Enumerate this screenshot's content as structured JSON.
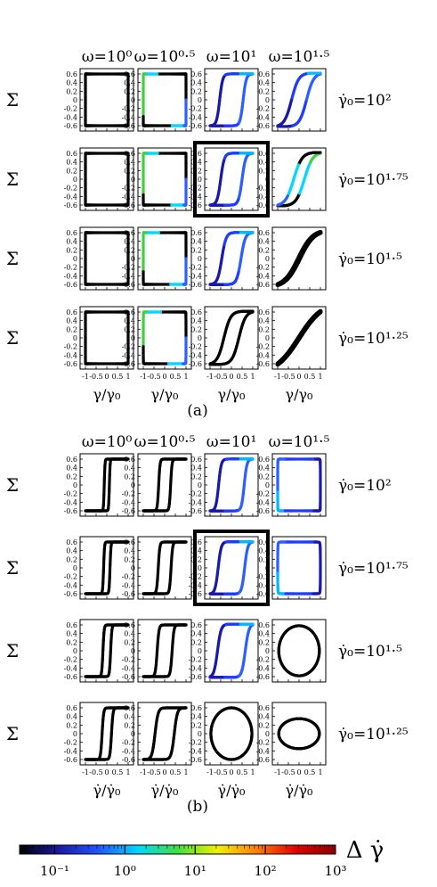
{
  "figure": {
    "colorbar_label": "Δ γ̇",
    "colorbar_ticks": [
      "10⁻¹",
      "10⁰",
      "10¹",
      "10²",
      "10³"
    ],
    "colorbar_log_range": [
      -1.5,
      3
    ],
    "colorbar_colors": [
      "#000000",
      "#1a1aa8",
      "#2255ff",
      "#00d8ff",
      "#40e040",
      "#f0f000",
      "#ff8000",
      "#e00000",
      "#900000"
    ],
    "ylabel": "Σ",
    "y_ticks": [
      "0.6",
      "0.4",
      "0.2",
      "0",
      "-0.2",
      "-0.4",
      "-0.6"
    ],
    "x_ticks": [
      "-1",
      "-0.5",
      "0",
      "0.5",
      "1"
    ]
  },
  "panels": [
    {
      "id": "a",
      "label": "(a)",
      "columns": [
        "ω=10⁰",
        "ω=10⁰·⁵",
        "ω=10¹",
        "ω=10¹·⁵"
      ],
      "rows": [
        "γ̇₀=10²",
        "γ̇₀=10¹·⁷⁵",
        "γ̇₀=10¹·⁵",
        "γ̇₀=10¹·²⁵"
      ],
      "xlabel": "γ/γ₀",
      "highlight": [
        1,
        2
      ]
    },
    {
      "id": "b",
      "label": "(b)",
      "columns": [
        "ω=10⁰",
        "ω=10⁰·⁵",
        "ω=10¹",
        "ω=10¹·⁵"
      ],
      "rows": [
        "γ̇₀=10²",
        "γ̇₀=10¹·⁷⁵",
        "γ̇₀=10¹·⁵",
        "γ̇₀=10¹·²⁵"
      ],
      "xlabel": "γ̇/γ̇₀",
      "highlight": [
        1,
        2
      ]
    }
  ],
  "chart_data": [
    {
      "type": "line",
      "panel": "a",
      "xlabel": "γ/γ₀",
      "ylabel": "Σ",
      "xlim": [
        -1.1,
        1.1
      ],
      "ylim": [
        -0.75,
        0.75
      ],
      "note": "4x4 grid of stress-strain loops; rows = shear-rate amplitude, columns = frequency",
      "loops": [
        [
          {
            "shape": "square",
            "sharp": 30,
            "color": "black"
          },
          {
            "shape": "square",
            "sharp": 22,
            "color": "mixed"
          },
          {
            "shape": "sigmoid",
            "sharp": 7,
            "shift": 0.55,
            "color": "blue"
          },
          {
            "shape": "sigmoid",
            "sharp": 3,
            "shift": 0.35,
            "color": "blue"
          }
        ],
        [
          {
            "shape": "square",
            "sharp": 30,
            "color": "black"
          },
          {
            "shape": "square",
            "sharp": 20,
            "color": "mixed"
          },
          {
            "shape": "sigmoid",
            "sharp": 6,
            "shift": 0.5,
            "color": "blue"
          },
          {
            "shape": "sigmoid",
            "sharp": 2.6,
            "shift": 0.25,
            "color": "mixed"
          }
        ],
        [
          {
            "shape": "square",
            "sharp": 28,
            "color": "black"
          },
          {
            "shape": "square",
            "sharp": 16,
            "color": "mixed"
          },
          {
            "shape": "sigmoid",
            "sharp": 5,
            "shift": 0.45,
            "color": "blue"
          },
          {
            "shape": "band",
            "sharp": 1.5,
            "shift": 0.03,
            "color": "black"
          }
        ],
        [
          {
            "shape": "square",
            "sharp": 26,
            "color": "black"
          },
          {
            "shape": "square",
            "sharp": 10,
            "color": "mixed"
          },
          {
            "shape": "sigmoid",
            "sharp": 3.2,
            "shift": 0.35,
            "color": "black"
          },
          {
            "shape": "band",
            "sharp": 0.9,
            "shift": 0.02,
            "color": "black"
          }
        ]
      ]
    },
    {
      "type": "line",
      "panel": "b",
      "xlabel": "γ̇/γ̇₀",
      "ylabel": "Σ",
      "xlim": [
        -1.1,
        1.1
      ],
      "ylim": [
        -0.75,
        0.75
      ],
      "note": "4x4 grid of stress vs shear-rate loops",
      "loops": [
        [
          {
            "shape": "sigmoid",
            "sharp": 30,
            "shift": 0.12,
            "color": "black"
          },
          {
            "shape": "sigmoid",
            "sharp": 16,
            "shift": 0.28,
            "color": "black"
          },
          {
            "shape": "sigmoid",
            "sharp": 8,
            "shift": 0.6,
            "color": "blue"
          },
          {
            "shape": "square",
            "sharp": 8,
            "color": "blue"
          }
        ],
        [
          {
            "shape": "sigmoid",
            "sharp": 24,
            "shift": 0.15,
            "color": "black"
          },
          {
            "shape": "sigmoid",
            "sharp": 14,
            "shift": 0.3,
            "color": "black"
          },
          {
            "shape": "sigmoid",
            "sharp": 7,
            "shift": 0.62,
            "color": "blue"
          },
          {
            "shape": "square",
            "sharp": 6,
            "color": "blue"
          }
        ],
        [
          {
            "shape": "sigmoid",
            "sharp": 18,
            "shift": 0.18,
            "color": "black"
          },
          {
            "shape": "sigmoid",
            "sharp": 12,
            "shift": 0.35,
            "color": "black"
          },
          {
            "shape": "sigmoid",
            "sharp": 6,
            "shift": 0.65,
            "color": "blue"
          },
          {
            "shape": "ellipse",
            "rx": 0.95,
            "ry": 0.6,
            "color": "black"
          }
        ],
        [
          {
            "shape": "sigmoid",
            "sharp": 14,
            "shift": 0.22,
            "color": "black"
          },
          {
            "shape": "sigmoid",
            "sharp": 7,
            "shift": 0.45,
            "color": "black"
          },
          {
            "shape": "ellipse",
            "rx": 0.96,
            "ry": 0.62,
            "color": "black"
          },
          {
            "shape": "ellipse",
            "rx": 0.95,
            "ry": 0.36,
            "color": "black"
          }
        ]
      ]
    }
  ]
}
